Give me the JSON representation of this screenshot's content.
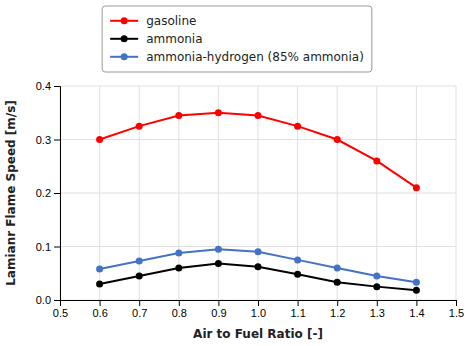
{
  "chart_data": {
    "type": "line",
    "x": [
      0.6,
      0.7,
      0.8,
      0.9,
      1.0,
      1.1,
      1.2,
      1.3,
      1.4
    ],
    "series": [
      {
        "name": "gasoline",
        "color": "#FF0000",
        "values": [
          0.3,
          0.325,
          0.345,
          0.35,
          0.345,
          0.325,
          0.3,
          0.26,
          0.21
        ]
      },
      {
        "name": "ammonia",
        "color": "#000000",
        "values": [
          0.03,
          0.045,
          0.06,
          0.068,
          0.062,
          0.048,
          0.033,
          0.025,
          0.018
        ]
      },
      {
        "name": "ammonia-hydrogen (85% ammonia)",
        "color": "#4472C4",
        "values": [
          0.058,
          0.073,
          0.088,
          0.095,
          0.09,
          0.075,
          0.06,
          0.045,
          0.033
        ]
      }
    ],
    "xlabel": "Air to Fuel Ratio [-]",
    "ylabel": "Lamianr Flame Speed [m/s]",
    "xlim": [
      0.5,
      1.5
    ],
    "ylim": [
      0,
      0.4
    ],
    "xticks": [
      0.5,
      0.6,
      0.7,
      0.8,
      0.9,
      {
        "value": 1.0,
        "label": "1.0"
      },
      1.1,
      1.2,
      1.3,
      1.4,
      1.5
    ],
    "yticks": [
      {
        "value": 0.0,
        "label": "0.0"
      },
      0.1,
      0.2,
      0.3,
      0.4
    ],
    "marker": "circle",
    "grid": true,
    "legend": "top"
  }
}
